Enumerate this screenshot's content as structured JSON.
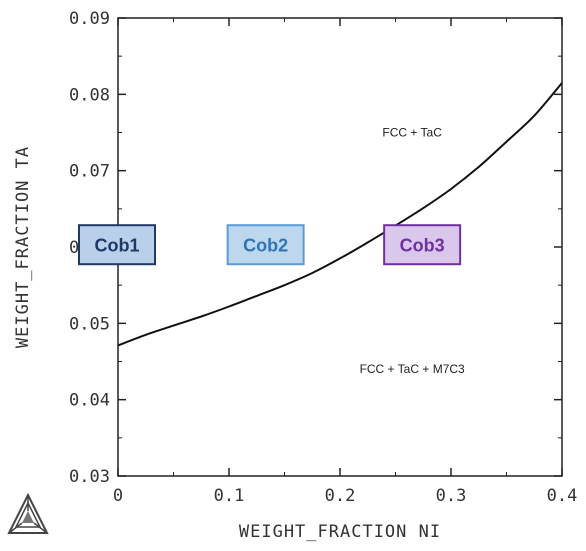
{
  "chart_data": {
    "type": "line",
    "xlabel": "WEIGHT_FRACTION NI",
    "ylabel": "WEIGHT_FRACTION TA",
    "xlim": [
      0,
      0.4
    ],
    "ylim": [
      0.03,
      0.09
    ],
    "x_ticks": [
      "0",
      "0.1",
      "0.2",
      "0.3",
      "0.4"
    ],
    "y_ticks": [
      "0.03",
      "0.04",
      "0.05",
      "0.06",
      "0.07",
      "0.08",
      "0.09"
    ],
    "grid": false,
    "series": [
      {
        "x": [
          0,
          0.025,
          0.05,
          0.075,
          0.1,
          0.125,
          0.15,
          0.175,
          0.2,
          0.225,
          0.25,
          0.275,
          0.3,
          0.325,
          0.35,
          0.375,
          0.4
        ],
        "y": [
          0.0471,
          0.0485,
          0.0497,
          0.0509,
          0.0522,
          0.0536,
          0.055,
          0.0566,
          0.0585,
          0.0606,
          0.0628,
          0.0651,
          0.0676,
          0.0705,
          0.0738,
          0.0772,
          0.0815
        ]
      }
    ],
    "annotations": [
      {
        "text": "FCC + TaC",
        "x": 0.265,
        "y": 0.0745
      },
      {
        "text": "FCC + TaC + M7C3",
        "x": 0.265,
        "y": 0.0435
      }
    ],
    "labeled_boxes": [
      {
        "text": "Cob1",
        "x": 0.0,
        "y": 0.0603,
        "fill": "#b9cfea",
        "stroke": "#1f3864",
        "text_color": "#1f3864"
      },
      {
        "text": "Cob2",
        "x": 0.133,
        "y": 0.0603,
        "fill": "#bdd7ee",
        "stroke": "#5b9bd5",
        "text_color": "#2e75b6"
      },
      {
        "text": "Cob3",
        "x": 0.274,
        "y": 0.0603,
        "fill": "#d9c8ec",
        "stroke": "#7030a0",
        "text_color": "#7030a0"
      }
    ]
  },
  "logo": {
    "name": "thermo-calc-logo"
  }
}
